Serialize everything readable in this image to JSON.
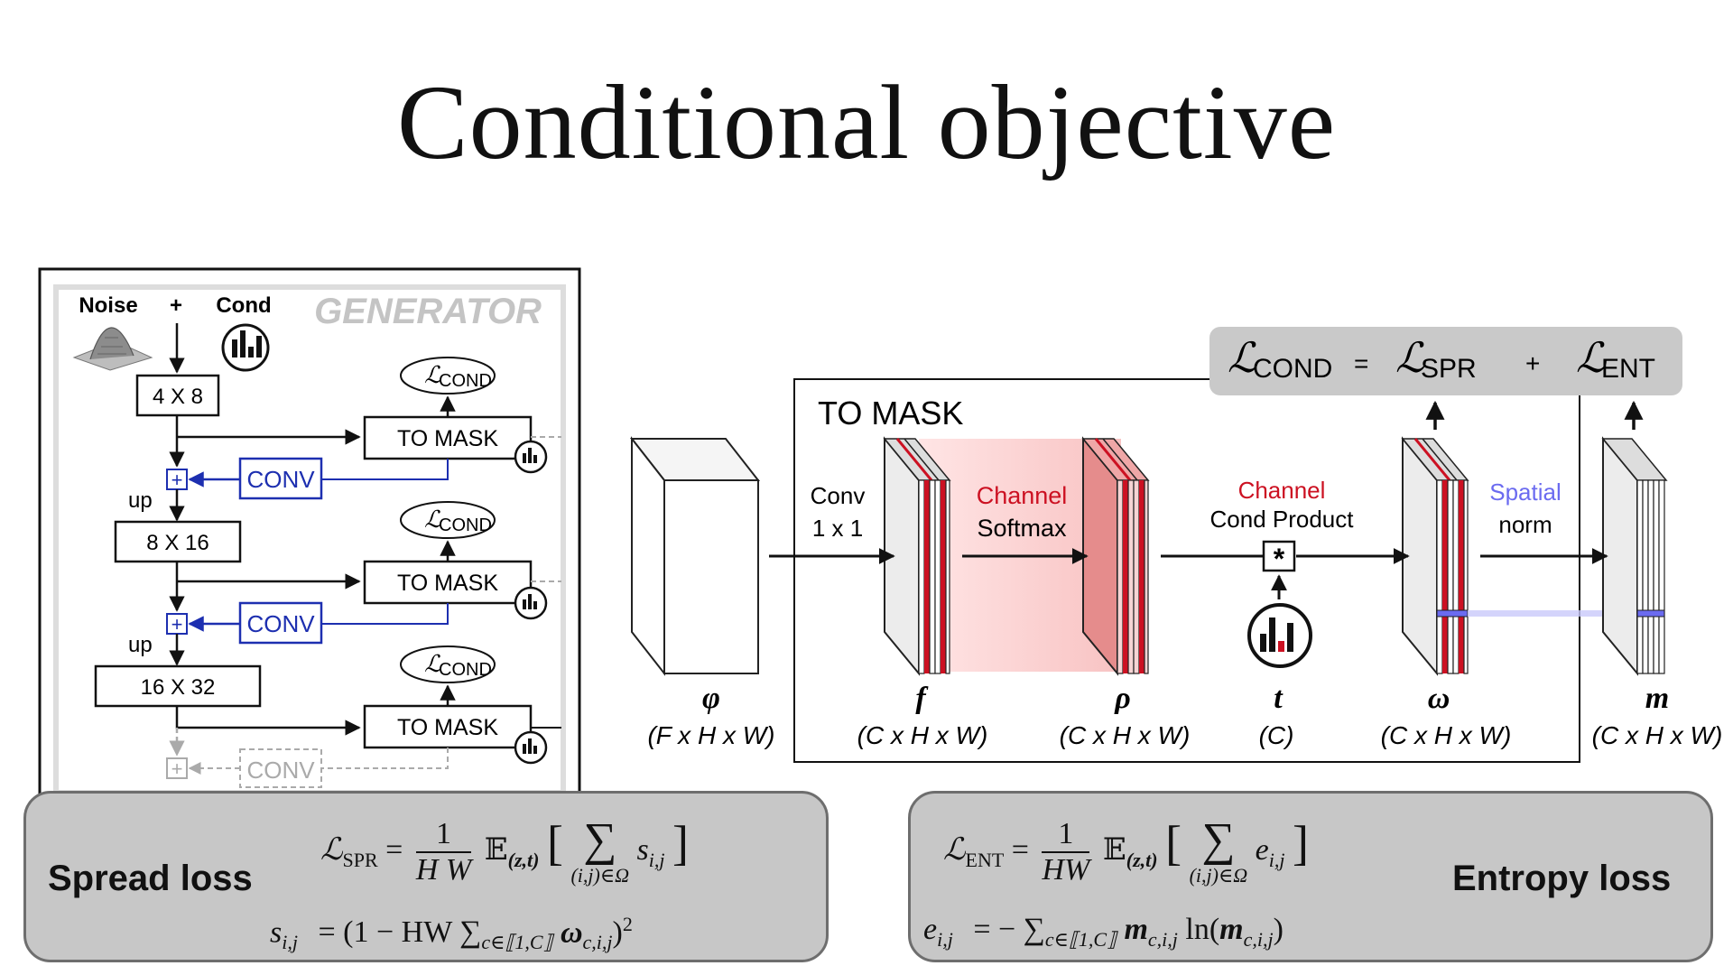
{
  "slide": {
    "title": "Conditional objective"
  },
  "generator": {
    "noise_label": "Noise",
    "plus_label": "+",
    "cond_label": "Cond",
    "title": "GENERATOR",
    "block1": "4 X 8",
    "block2": "8 X 16",
    "block3": "16 X 32",
    "to_mask": "TO MASK",
    "conv": "CONV",
    "up": "up",
    "lcond": "COND",
    "script_l": "ℒ"
  },
  "to_mask_panel": {
    "title": "TO MASK",
    "conv_line1": "Conv",
    "conv_line2": "1 x 1",
    "softmax_line1": "Channel",
    "softmax_line2": "Softmax",
    "product_line1": "Channel",
    "product_line2": "Cond Product",
    "product_symbol": "*",
    "spatial_line1": "Spatial",
    "spatial_line2": "norm",
    "colors": {
      "channel_red": "#cc1122",
      "spatial_blue": "#6b6bf0",
      "softmax_fill": "#f8c7c7"
    }
  },
  "tensors": [
    {
      "symbol": "φ",
      "shape": "(F x H x W)"
    },
    {
      "symbol": "f",
      "shape": "(C x H x W)"
    },
    {
      "symbol": "ρ",
      "shape": "(C x H x W)"
    },
    {
      "symbol": "t",
      "shape": "(C)"
    },
    {
      "symbol": "ω",
      "shape": "(C x H x W)"
    },
    {
      "symbol": "m",
      "shape": "(C x H x W)"
    }
  ],
  "objective": {
    "lhs_sub": "COND",
    "equals": "=",
    "spr_sub": "SPR",
    "plus": "+",
    "ent_sub": "ENT",
    "script_l": "ℒ"
  },
  "spread_loss": {
    "title": "Spread loss",
    "lhs": "ℒ",
    "lhs_sub": "SPR",
    "equals": "=",
    "frac_num": "1",
    "frac_den": "H W",
    "expect": "𝔼",
    "expect_sub": "(z,t)",
    "lbracket": "[",
    "sum": "∑",
    "sum_sub": "(i,j)∈Ω",
    "term": "s",
    "term_sub": "i,j",
    "rbracket": "]",
    "line2_lhs": "s",
    "line2_lhs_sub": "i,j",
    "line2_rhs_a": "= (1 − HW ∑",
    "line2_sum_sub": "c∈⟦1,C⟧",
    "line2_rhs_b": "ω",
    "line2_rhs_sub": "c,i,j",
    "line2_rhs_c": ")",
    "line2_sup": "2"
  },
  "entropy_loss": {
    "title": "Entropy loss",
    "lhs": "ℒ",
    "lhs_sub": "ENT",
    "equals": "=",
    "frac_num": "1",
    "frac_den": "HW",
    "expect": "𝔼",
    "expect_sub": "(z,t)",
    "lbracket": "[",
    "sum": "∑",
    "sum_sub": "(i,j)∈Ω",
    "term": "e",
    "term_sub": "i,j",
    "rbracket": "]",
    "line2_lhs": "e",
    "line2_lhs_sub": "i,j",
    "line2_rhs_a": "= − ∑",
    "line2_sum_sub": "c∈⟦1,C⟧",
    "line2_rhs_b": "m",
    "line2_rhs_sub": "c,i,j",
    "line2_rhs_c": " ln(",
    "line2_rhs_d": "m",
    "line2_rhs_sub2": "c,i,j",
    "line2_rhs_e": ")"
  }
}
